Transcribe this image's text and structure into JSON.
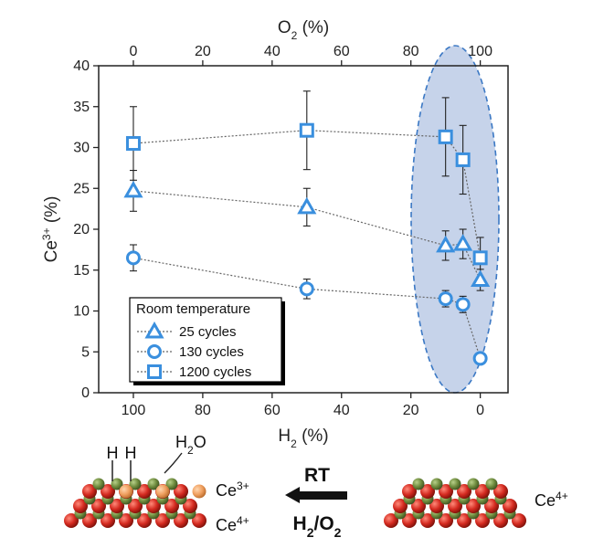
{
  "chart_data": {
    "type": "scatter",
    "bottom_axis": {
      "label_main": "H",
      "label_sub": "2",
      "label_tail": " (%)",
      "ticks": [
        100,
        80,
        60,
        40,
        20,
        0
      ],
      "range": [
        110,
        -8
      ]
    },
    "top_axis": {
      "label_main": "O",
      "label_sub": "2",
      "label_tail": " (%)",
      "ticks": [
        0,
        20,
        40,
        60,
        80,
        100
      ],
      "range": [
        -10,
        108
      ]
    },
    "y_axis": {
      "label_main": "Ce",
      "label_sup": "3+",
      "label_tail": " (%)",
      "ticks": [
        0,
        5,
        10,
        15,
        20,
        25,
        30,
        35,
        40
      ],
      "range": [
        0,
        40
      ]
    },
    "grid": false,
    "legend": {
      "title": "Room temperature",
      "placement": "bottom-left"
    },
    "series": [
      {
        "name": "25 cycles",
        "marker": "triangle",
        "x": [
          100,
          50,
          10,
          5,
          0
        ],
        "y": [
          24.7,
          22.7,
          18.0,
          18.2,
          13.8
        ],
        "err": [
          2.5,
          2.3,
          1.8,
          1.8,
          1.3
        ]
      },
      {
        "name": "130 cycles",
        "marker": "circle",
        "x": [
          100,
          50,
          10,
          5,
          0
        ],
        "y": [
          16.5,
          12.7,
          11.5,
          10.8,
          4.2
        ],
        "err": [
          1.6,
          1.2,
          1.0,
          1.0,
          0.4
        ]
      },
      {
        "name": "1200 cycles",
        "marker": "square",
        "x": [
          100,
          50,
          10,
          5,
          0
        ],
        "y": [
          30.5,
          32.1,
          31.3,
          28.5,
          16.5
        ],
        "err": [
          4.5,
          4.8,
          4.8,
          4.2,
          2.5
        ]
      }
    ],
    "colors": {
      "marker": "#3a8fde",
      "connector": "#666666",
      "ellipse_fill": "#c6d3ea",
      "ellipse_stroke": "#3b78c4"
    }
  },
  "diagram": {
    "left_labels": {
      "h_left": "H",
      "h_right": "H",
      "water_main": "H",
      "water_sub": "2",
      "water_tail": "O",
      "ce3_main": "Ce",
      "ce3_sup": "3+",
      "ce4_main": "Ce",
      "ce4_sup": "4+"
    },
    "arrow_top": "RT",
    "arrow_bottom_main": "H",
    "arrow_bottom_sub": "2",
    "arrow_bottom_mid": "/O",
    "arrow_bottom_sub2": "2",
    "right_label_main": "Ce",
    "right_label_sup": "4+",
    "colors": {
      "ce_red": "#d42a20",
      "oxygen_green": "#6f8c3e",
      "hydrogen_orange": "#f0a060"
    }
  }
}
